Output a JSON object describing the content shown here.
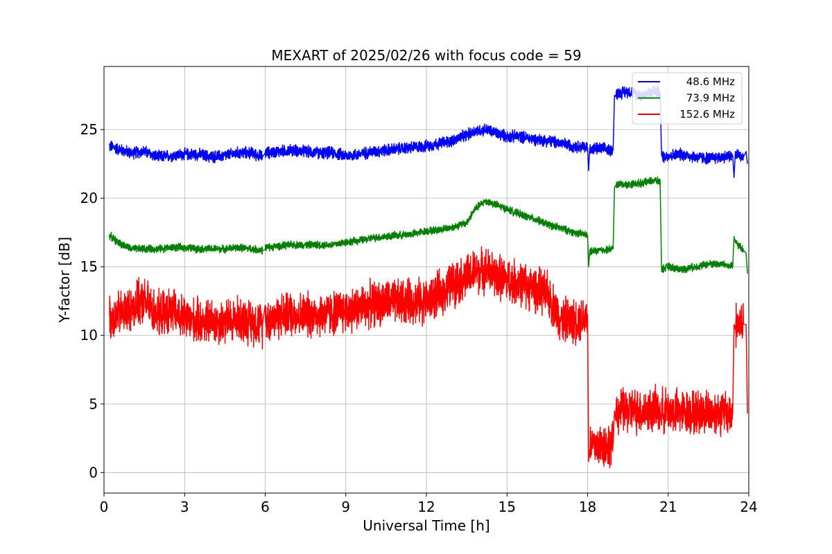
{
  "chart_data": {
    "type": "line",
    "title": "MEXART of 2025/02/26 with focus code = 59",
    "xlabel": "Universal Time [h]",
    "ylabel": "Y-factor [dB]",
    "xlim": [
      0,
      24
    ],
    "ylim": [
      -1.5,
      29.6
    ],
    "xticks": [
      0,
      3,
      6,
      9,
      12,
      15,
      18,
      21,
      24
    ],
    "yticks": [
      0,
      5,
      10,
      15,
      20,
      25
    ],
    "grid": true,
    "legend_position": "top-right",
    "series": [
      {
        "name": "48.6 MHz",
        "color": "#0000ff",
        "noise": 0.35,
        "x": [
          0.2,
          0.5,
          1,
          1.5,
          2,
          2.5,
          3,
          3.5,
          4,
          4.5,
          5,
          5.5,
          5.9,
          6,
          6.5,
          7,
          7.5,
          8,
          8.5,
          9,
          9.5,
          10,
          10.5,
          11,
          11.5,
          12,
          12.5,
          13,
          13.5,
          13.8,
          14.2,
          14.5,
          15,
          15.5,
          16,
          16.5,
          17,
          17.5,
          18.0,
          18.04,
          18.08,
          18.5,
          18.95,
          19.0,
          19.05,
          19.5,
          20,
          20.5,
          20.7,
          20.75,
          21,
          21.5,
          22,
          22.5,
          23,
          23.4,
          23.45,
          23.5,
          23.8,
          23.9,
          23.95
        ],
        "y": [
          23.8,
          23.6,
          23.3,
          23.4,
          23.0,
          23.1,
          23.2,
          23.2,
          23.0,
          23.1,
          23.3,
          23.3,
          23.0,
          23.3,
          23.4,
          23.5,
          23.4,
          23.3,
          23.3,
          23.1,
          23.2,
          23.4,
          23.5,
          23.6,
          23.7,
          23.8,
          24.0,
          24.2,
          24.6,
          24.9,
          25.0,
          24.8,
          24.5,
          24.5,
          24.3,
          24.2,
          24.0,
          23.8,
          23.7,
          22.0,
          23.6,
          23.6,
          23.5,
          27.5,
          27.6,
          27.8,
          27.5,
          27.8,
          27.7,
          23.0,
          23.1,
          23.2,
          23.0,
          22.9,
          23.0,
          23.1,
          21.5,
          23.2,
          23.0,
          23.4,
          22.5
        ]
      },
      {
        "name": "73.9 MHz",
        "color": "#008000",
        "noise": 0.22,
        "x": [
          0.2,
          0.5,
          1,
          1.5,
          2,
          2.5,
          3,
          3.5,
          4,
          4.5,
          5,
          5.5,
          5.9,
          6,
          6.5,
          7,
          7.5,
          8,
          8.5,
          9,
          9.5,
          10,
          10.5,
          11,
          11.5,
          12,
          12.5,
          13,
          13.5,
          13.8,
          14.2,
          14.5,
          15,
          15.5,
          16,
          16.5,
          17,
          17.5,
          18.0,
          18.04,
          18.08,
          18.5,
          18.95,
          19.0,
          19.05,
          19.5,
          20,
          20.5,
          20.7,
          20.75,
          21,
          21.5,
          22,
          22.5,
          23,
          23.4,
          23.45,
          23.5,
          23.8,
          23.9,
          23.95
        ],
        "y": [
          17.3,
          16.8,
          16.3,
          16.3,
          16.3,
          16.4,
          16.4,
          16.3,
          16.3,
          16.3,
          16.4,
          16.3,
          16.2,
          16.4,
          16.5,
          16.6,
          16.6,
          16.6,
          16.6,
          16.8,
          16.9,
          17.1,
          17.2,
          17.3,
          17.4,
          17.6,
          17.7,
          17.9,
          18.2,
          19.2,
          19.8,
          19.6,
          19.2,
          18.8,
          18.5,
          18.1,
          17.8,
          17.5,
          17.3,
          15.0,
          16.1,
          16.2,
          16.3,
          20.8,
          21.0,
          21.0,
          21.1,
          21.3,
          21.2,
          14.8,
          15.0,
          14.8,
          15.0,
          15.2,
          15.2,
          15.0,
          17.2,
          16.8,
          16.2,
          16.0,
          14.5
        ]
      },
      {
        "name": "152.6 MHz",
        "color": "#ff0000",
        "noise": 1.3,
        "x": [
          0.2,
          0.5,
          1,
          1.5,
          2,
          2.5,
          3,
          3.5,
          4,
          4.5,
          5,
          5.5,
          5.9,
          6,
          6.5,
          7,
          7.5,
          8,
          8.5,
          9,
          9.5,
          10,
          10.5,
          11,
          11.5,
          12,
          12.5,
          13,
          13.5,
          13.8,
          14.2,
          14.5,
          15,
          15.5,
          16,
          16.5,
          17,
          17.5,
          18.0,
          18.04,
          18.08,
          18.5,
          18.95,
          19.0,
          19.05,
          19.5,
          20,
          20.5,
          20.7,
          20.75,
          21,
          21.5,
          22,
          22.5,
          23,
          23.4,
          23.45,
          23.5,
          23.8,
          23.9,
          23.95
        ],
        "y": [
          11.2,
          11.5,
          12.0,
          12.5,
          11.5,
          11.8,
          11.2,
          11.0,
          11.0,
          11.0,
          11.2,
          11.0,
          10.8,
          11.2,
          11.4,
          11.6,
          11.5,
          11.5,
          11.6,
          11.8,
          12.0,
          12.3,
          12.4,
          12.4,
          12.5,
          12.5,
          13.0,
          13.8,
          14.2,
          14.6,
          14.8,
          14.4,
          14.0,
          13.8,
          13.4,
          13.0,
          11.2,
          11.0,
          11.5,
          0.8,
          2.0,
          2.0,
          2.0,
          4.5,
          4.5,
          4.5,
          4.5,
          4.5,
          4.5,
          4.5,
          4.5,
          4.4,
          4.4,
          4.4,
          4.4,
          4.3,
          10.8,
          10.8,
          10.8,
          10.8,
          4.3
        ]
      }
    ]
  }
}
